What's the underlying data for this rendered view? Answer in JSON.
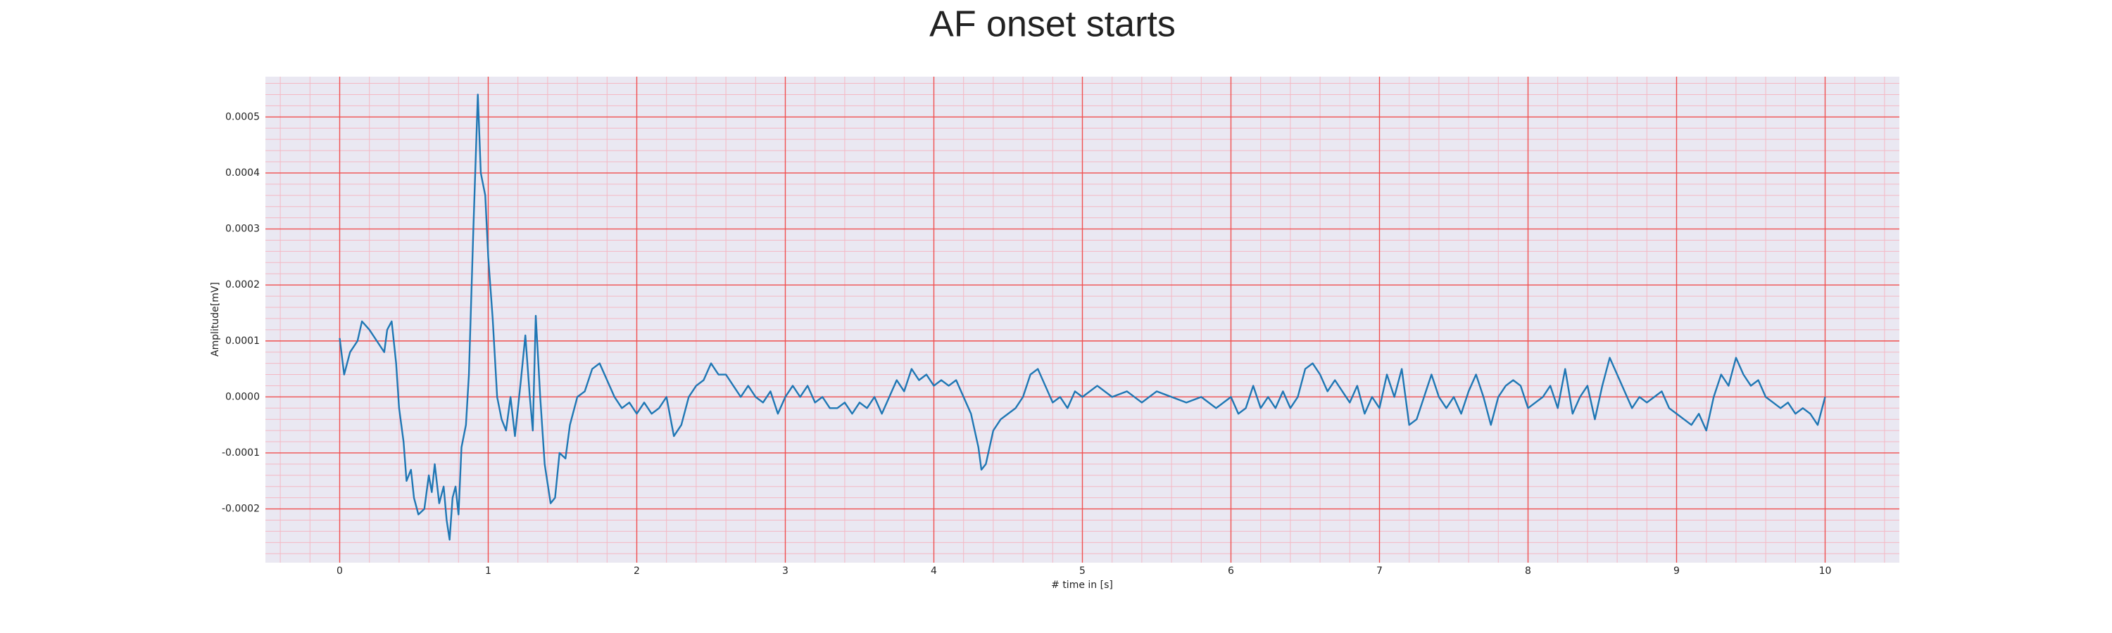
{
  "chart_data": {
    "type": "line",
    "title": "AF onset starts",
    "x_label": "# time in [s]",
    "y_label": "Amplitude[mV]",
    "color": "#1f77b4",
    "grid": true,
    "xlim": [
      -0.5,
      10.5
    ],
    "ylim": [
      -0.000296,
      0.000572
    ],
    "xticks": [
      0,
      1,
      2,
      3,
      4,
      5,
      6,
      7,
      8,
      9,
      10
    ],
    "yticks": [
      -0.0002,
      -0.0001,
      {
        "value": 0,
        "label": "0.0000"
      },
      0.0001,
      0.0002,
      0.0003,
      0.0004,
      0.0005
    ],
    "x": [
      0,
      0.03,
      0.07,
      0.12,
      0.15,
      0.2,
      0.25,
      0.3,
      0.32,
      0.35,
      0.38,
      0.4,
      0.43,
      0.45,
      0.48,
      0.5,
      0.53,
      0.57,
      0.6,
      0.62,
      0.64,
      0.67,
      0.7,
      0.72,
      0.74,
      0.76,
      0.78,
      0.8,
      0.82,
      0.85,
      0.87,
      0.9,
      0.93,
      0.95,
      0.98,
      1.0,
      1.03,
      1.06,
      1.09,
      1.12,
      1.15,
      1.18,
      1.22,
      1.25,
      1.28,
      1.3,
      1.32,
      1.35,
      1.38,
      1.42,
      1.45,
      1.48,
      1.52,
      1.55,
      1.6,
      1.65,
      1.7,
      1.75,
      1.8,
      1.85,
      1.9,
      1.95,
      2.0,
      2.05,
      2.1,
      2.15,
      2.2,
      2.25,
      2.3,
      2.35,
      2.4,
      2.45,
      2.5,
      2.55,
      2.6,
      2.65,
      2.7,
      2.75,
      2.8,
      2.85,
      2.9,
      2.95,
      3.0,
      3.05,
      3.1,
      3.15,
      3.2,
      3.25,
      3.3,
      3.35,
      3.4,
      3.45,
      3.5,
      3.55,
      3.6,
      3.65,
      3.7,
      3.75,
      3.8,
      3.85,
      3.9,
      3.95,
      4.0,
      4.05,
      4.1,
      4.15,
      4.2,
      4.25,
      4.3,
      4.32,
      4.35,
      4.4,
      4.45,
      4.5,
      4.55,
      4.6,
      4.65,
      4.7,
      4.75,
      4.8,
      4.85,
      4.9,
      4.95,
      5.0,
      5.1,
      5.2,
      5.3,
      5.4,
      5.5,
      5.6,
      5.7,
      5.8,
      5.9,
      6.0,
      6.05,
      6.1,
      6.15,
      6.2,
      6.25,
      6.3,
      6.35,
      6.4,
      6.45,
      6.5,
      6.55,
      6.6,
      6.65,
      6.7,
      6.75,
      6.8,
      6.85,
      6.9,
      6.95,
      7.0,
      7.05,
      7.1,
      7.15,
      7.2,
      7.25,
      7.3,
      7.35,
      7.4,
      7.45,
      7.5,
      7.55,
      7.6,
      7.65,
      7.7,
      7.75,
      7.8,
      7.85,
      7.9,
      7.95,
      8.0,
      8.05,
      8.1,
      8.15,
      8.2,
      8.25,
      8.3,
      8.35,
      8.4,
      8.45,
      8.5,
      8.55,
      8.6,
      8.65,
      8.7,
      8.75,
      8.8,
      8.85,
      8.9,
      8.95,
      9.0,
      9.05,
      9.1,
      9.15,
      9.2,
      9.25,
      9.3,
      9.35,
      9.4,
      9.45,
      9.5,
      9.55,
      9.6,
      9.65,
      9.7,
      9.75,
      9.8,
      9.85,
      9.9,
      9.95,
      10.0
    ],
    "values": [
      0.000105,
      4e-05,
      8e-05,
      0.0001,
      0.000135,
      0.00012,
      0.0001,
      8e-05,
      0.00012,
      0.000135,
      6e-05,
      -2e-05,
      -8e-05,
      -0.00015,
      -0.00013,
      -0.00018,
      -0.00021,
      -0.0002,
      -0.00014,
      -0.00017,
      -0.00012,
      -0.00019,
      -0.00016,
      -0.00022,
      -0.000255,
      -0.00018,
      -0.00016,
      -0.00021,
      -9e-05,
      -5e-05,
      4e-05,
      0.0003,
      0.00054,
      0.0004,
      0.00036,
      0.00025,
      0.00014,
      0,
      -4e-05,
      -6e-05,
      0,
      -7e-05,
      3e-05,
      0.00011,
      0,
      -6e-05,
      0.000145,
      0,
      -0.00012,
      -0.00019,
      -0.00018,
      -0.0001,
      -0.00011,
      -5e-05,
      0,
      1e-05,
      5e-05,
      6e-05,
      3e-05,
      0,
      -2e-05,
      -1e-05,
      -3e-05,
      -1e-05,
      -3e-05,
      -2e-05,
      0,
      -7e-05,
      -5e-05,
      0,
      2e-05,
      3e-05,
      6e-05,
      4e-05,
      4e-05,
      2e-05,
      0,
      2e-05,
      0,
      -1e-05,
      1e-05,
      -3e-05,
      0,
      2e-05,
      0,
      2e-05,
      -1e-05,
      0,
      -2e-05,
      -2e-05,
      -1e-05,
      -3e-05,
      -1e-05,
      -2e-05,
      0,
      -3e-05,
      0,
      3e-05,
      1e-05,
      5e-05,
      3e-05,
      4e-05,
      2e-05,
      3e-05,
      2e-05,
      3e-05,
      0,
      -3e-05,
      -9e-05,
      -0.00013,
      -0.00012,
      -6e-05,
      -4e-05,
      -3e-05,
      -2e-05,
      0,
      4e-05,
      5e-05,
      2e-05,
      -1e-05,
      0,
      -2e-05,
      1e-05,
      0,
      2e-05,
      0,
      1e-05,
      -1e-05,
      1e-05,
      0,
      -1e-05,
      0,
      -2e-05,
      0,
      -3e-05,
      -2e-05,
      2e-05,
      -2e-05,
      0,
      -2e-05,
      1e-05,
      -2e-05,
      0,
      5e-05,
      6e-05,
      4e-05,
      1e-05,
      3e-05,
      1e-05,
      -1e-05,
      2e-05,
      -3e-05,
      0,
      -2e-05,
      4e-05,
      0,
      5e-05,
      -5e-05,
      -4e-05,
      0,
      4e-05,
      0,
      -2e-05,
      0,
      -3e-05,
      1e-05,
      4e-05,
      0,
      -5e-05,
      0,
      2e-05,
      3e-05,
      2e-05,
      -2e-05,
      -1e-05,
      0,
      2e-05,
      -2e-05,
      5e-05,
      -3e-05,
      0,
      2e-05,
      -4e-05,
      2e-05,
      7e-05,
      4e-05,
      1e-05,
      -2e-05,
      0,
      -1e-05,
      0,
      1e-05,
      -2e-05,
      -3e-05,
      -4e-05,
      -5e-05,
      -3e-05,
      -6e-05,
      0,
      4e-05,
      2e-05,
      7e-05,
      4e-05,
      2e-05,
      3e-05,
      0,
      -1e-05,
      -2e-05,
      -1e-05,
      -3e-05,
      -2e-05,
      -3e-05,
      -5e-05,
      0
    ]
  }
}
